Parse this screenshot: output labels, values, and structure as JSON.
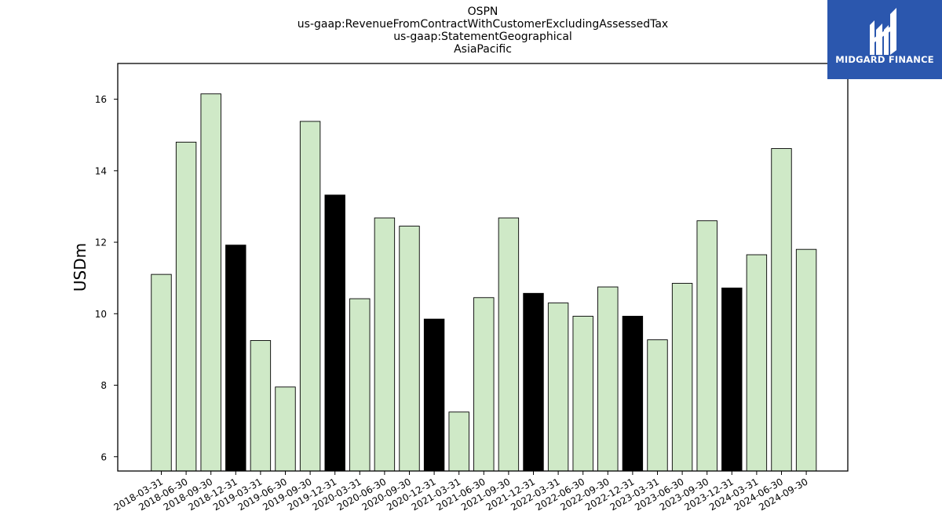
{
  "chart_data": {
    "type": "bar",
    "title_lines": [
      "OSPN",
      "us-gaap:RevenueFromContractWithCustomerExcludingAssessedTax",
      "us-gaap:StatementGeographical",
      "AsiaPacific"
    ],
    "ylabel": "USDm",
    "xlabel": "",
    "ylim": [
      5.6,
      17
    ],
    "yticks": [
      6,
      8,
      10,
      12,
      14,
      16
    ],
    "grid": false,
    "categories": [
      "2018-03-31",
      "2018-06-30",
      "2018-09-30",
      "2018-12-31",
      "2019-03-31",
      "2019-06-30",
      "2019-09-30",
      "2019-12-31",
      "2020-03-31",
      "2020-06-30",
      "2020-09-30",
      "2020-12-31",
      "2021-03-31",
      "2021-06-30",
      "2021-09-30",
      "2021-12-31",
      "2022-03-31",
      "2022-06-30",
      "2022-09-30",
      "2022-12-31",
      "2023-03-31",
      "2023-06-30",
      "2023-09-30",
      "2023-12-31",
      "2024-03-31",
      "2024-06-30",
      "2024-09-30"
    ],
    "values": [
      11.1,
      14.8,
      16.15,
      11.92,
      9.25,
      7.95,
      15.38,
      13.32,
      10.42,
      12.68,
      12.45,
      9.85,
      7.25,
      10.45,
      12.68,
      10.57,
      10.3,
      9.93,
      10.75,
      9.93,
      9.27,
      10.85,
      12.6,
      10.72,
      11.65,
      14.62,
      11.8
    ],
    "highlight_quarter": "12-31",
    "colors": {
      "normal": "#cfe9c7",
      "highlight": "#000000",
      "edge": "#000000"
    }
  },
  "logo": {
    "text": "MIDGARD FINANCE",
    "background": "#2b57ae"
  }
}
